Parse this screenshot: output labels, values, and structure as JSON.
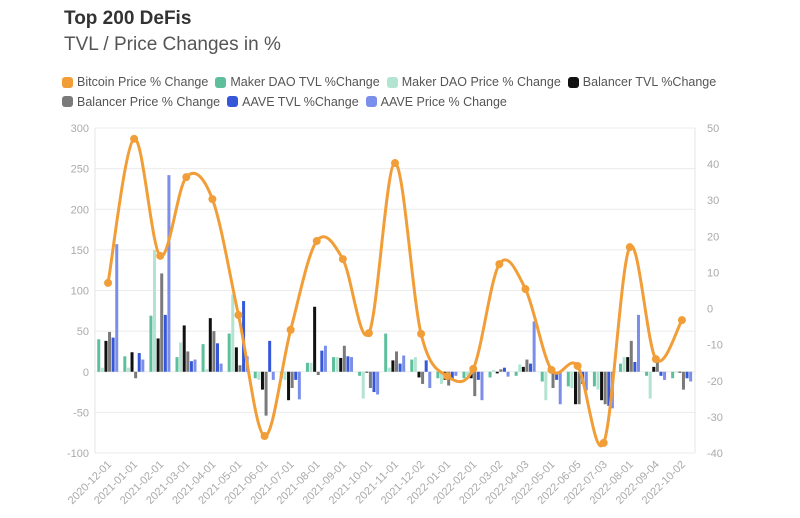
{
  "chart_data": {
    "type": "bar+line",
    "title": "Top 200 DeFis",
    "subtitle": "TVL / Price Changes in %",
    "legend_position": "top-left",
    "grid": true,
    "categories": [
      "2020-12-01",
      "2021-01-01",
      "2021-02-01",
      "2021-03-01",
      "2021-04-01",
      "2021-05-01",
      "2021-06-01",
      "2021-07-01",
      "2021-08-01",
      "2021-09-01",
      "2021-10-01",
      "2021-11-01",
      "2021-12-02",
      "2022-01-01",
      "2022-02-01",
      "2022-03-02",
      "2022-04-03",
      "2022-05-01",
      "2022-06-05",
      "2022-07-03",
      "2022-08-01",
      "2022-09-04",
      "2022-10-02"
    ],
    "y_left": {
      "range": [
        -100,
        300
      ],
      "ticks": [
        -100,
        -50,
        0,
        50,
        100,
        150,
        200,
        250,
        300
      ]
    },
    "y_right": {
      "range": [
        -40,
        50
      ],
      "ticks": [
        -40,
        -30,
        -20,
        -10,
        0,
        10,
        20,
        30,
        40,
        50
      ]
    },
    "line_series": {
      "name": "Bitcoin Price % Change",
      "color": "#f29e38",
      "axis": "right",
      "values": [
        7.1,
        47,
        14.6,
        36.4,
        30.3,
        -1.8,
        -35.3,
        -5.9,
        18.7,
        13.7,
        -6.8,
        40.3,
        -7,
        -18.7,
        -16.7,
        12.3,
        5.4,
        -17,
        -15.9,
        -37.2,
        17,
        -14,
        -3.2
      ]
    },
    "bar_series": [
      {
        "name": "Maker DAO TVL %Change",
        "color": "#5dbf9c",
        "values": [
          40,
          19,
          69,
          18,
          34,
          47,
          -8,
          -8,
          11,
          18,
          -5,
          47,
          15,
          -8,
          -8,
          -7,
          -5,
          -12,
          -18,
          -18,
          10,
          -5,
          -8
        ]
      },
      {
        "name": "Maker DAO Price % Change",
        "color": "#b3e3d1",
        "values": [
          5,
          5,
          150,
          36,
          3,
          95,
          -10,
          -10,
          11,
          18,
          -33,
          5,
          18,
          -15,
          -5,
          2,
          9,
          -35,
          -20,
          -22,
          18,
          -33,
          -1
        ]
      },
      {
        "name": "Balancer TVL %Change",
        "color": "#111111",
        "values": [
          38,
          24,
          41,
          57,
          66,
          30,
          -22,
          -35,
          80,
          17,
          -1,
          14,
          -7,
          -10,
          -8,
          -2,
          6,
          5,
          -40,
          -35,
          18,
          6,
          -1
        ]
      },
      {
        "name": "Balancer Price % Change",
        "color": "#7a7a7a",
        "values": [
          49,
          -8,
          121,
          25,
          50,
          8,
          -54,
          -20,
          -4,
          32,
          -20,
          25,
          -15,
          -17,
          -30,
          3,
          15,
          -20,
          -40,
          -40,
          38,
          15,
          -22
        ]
      },
      {
        "name": "AAVE TVL %Change",
        "color": "#3557d8",
        "values": [
          42,
          23,
          70,
          13,
          35,
          87,
          38,
          -10,
          26,
          19,
          -25,
          10,
          14,
          -10,
          -10,
          5,
          10,
          -10,
          -15,
          -42,
          12,
          -5,
          -8
        ]
      },
      {
        "name": "AAVE Price % Change",
        "color": "#7b8fea",
        "values": [
          157,
          15,
          242,
          15,
          10,
          19,
          -10,
          -34,
          32,
          18,
          -28,
          20,
          -20,
          -5,
          -35,
          -6,
          62,
          -40,
          -23,
          -45,
          70,
          -10,
          -12
        ]
      }
    ]
  }
}
